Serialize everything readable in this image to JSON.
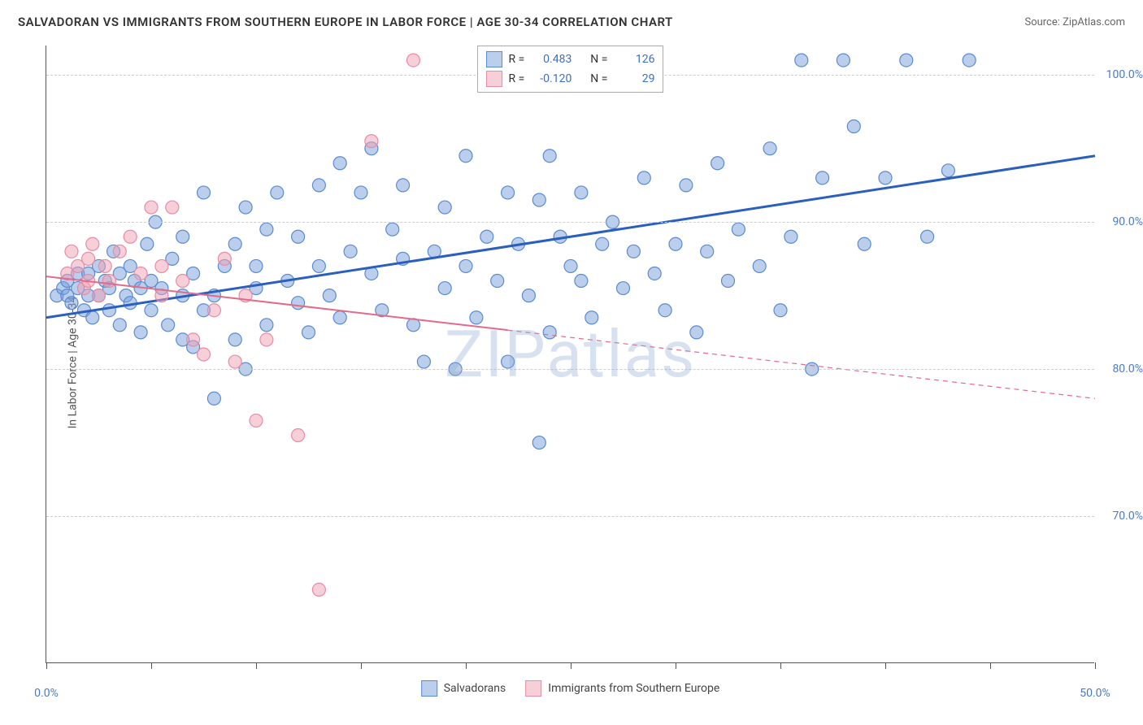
{
  "title": "SALVADORAN VS IMMIGRANTS FROM SOUTHERN EUROPE IN LABOR FORCE | AGE 30-34 CORRELATION CHART",
  "source": "Source: ZipAtlas.com",
  "ylabel": "In Labor Force | Age 30-34",
  "watermark": "ZIPatlas",
  "xlim": [
    0,
    50
  ],
  "ylim": [
    60,
    102
  ],
  "xtick_labels": {
    "0": "0.0%",
    "50": "50.0%"
  },
  "xtick_positions": [
    0,
    5,
    10,
    15,
    20,
    25,
    30,
    35,
    40,
    45,
    50
  ],
  "ytick_labels": {
    "70": "70.0%",
    "80": "80.0%",
    "90": "90.0%",
    "100": "100.0%"
  },
  "grid_color": "#cccccc",
  "series": [
    {
      "name": "Salvadorans",
      "color_fill": "rgba(120,160,220,0.5)",
      "color_stroke": "#5a8bd0",
      "line_color": "#2a5fbf",
      "line_width": 3,
      "line_dash": "none",
      "R": "0.483",
      "N": "126",
      "trend": {
        "x1": 0,
        "y1": 83.5,
        "x2": 50,
        "y2": 94.5,
        "solid_until_x": 50
      },
      "points": [
        [
          0.5,
          85
        ],
        [
          0.8,
          85.5
        ],
        [
          1,
          86
        ],
        [
          1,
          85
        ],
        [
          1.2,
          84.5
        ],
        [
          1.5,
          85.5
        ],
        [
          1.5,
          86.5
        ],
        [
          1.8,
          84
        ],
        [
          2,
          85
        ],
        [
          2,
          86.5
        ],
        [
          2.2,
          83.5
        ],
        [
          2.5,
          85
        ],
        [
          2.5,
          87
        ],
        [
          2.8,
          86
        ],
        [
          3,
          84
        ],
        [
          3,
          85.5
        ],
        [
          3.2,
          88
        ],
        [
          3.5,
          86.5
        ],
        [
          3.5,
          83
        ],
        [
          3.8,
          85
        ],
        [
          4,
          87
        ],
        [
          4,
          84.5
        ],
        [
          4.2,
          86
        ],
        [
          4.5,
          85.5
        ],
        [
          4.5,
          82.5
        ],
        [
          4.8,
          88.5
        ],
        [
          5,
          86
        ],
        [
          5,
          84
        ],
        [
          5.2,
          90
        ],
        [
          5.5,
          85.5
        ],
        [
          5.8,
          83
        ],
        [
          6,
          87.5
        ],
        [
          6.5,
          85
        ],
        [
          6.5,
          82
        ],
        [
          6.5,
          89
        ],
        [
          7,
          86.5
        ],
        [
          7,
          81.5
        ],
        [
          7.5,
          84
        ],
        [
          7.5,
          92
        ],
        [
          8,
          85
        ],
        [
          8,
          78
        ],
        [
          8.5,
          87
        ],
        [
          9,
          88.5
        ],
        [
          9,
          82
        ],
        [
          9.5,
          80
        ],
        [
          9.5,
          91
        ],
        [
          10,
          85.5
        ],
        [
          10,
          87
        ],
        [
          10.5,
          89.5
        ],
        [
          10.5,
          83
        ],
        [
          11,
          92
        ],
        [
          11.5,
          86
        ],
        [
          12,
          84.5
        ],
        [
          12,
          89
        ],
        [
          12.5,
          82.5
        ],
        [
          13,
          87
        ],
        [
          13,
          92.5
        ],
        [
          13.5,
          85
        ],
        [
          14,
          83.5
        ],
        [
          14,
          94
        ],
        [
          14.5,
          88
        ],
        [
          15,
          92
        ],
        [
          15.5,
          86.5
        ],
        [
          15.5,
          95
        ],
        [
          16,
          84
        ],
        [
          16.5,
          89.5
        ],
        [
          17,
          87.5
        ],
        [
          17,
          92.5
        ],
        [
          17.5,
          83
        ],
        [
          18,
          80.5
        ],
        [
          18.5,
          88
        ],
        [
          19,
          85.5
        ],
        [
          19,
          91
        ],
        [
          19.5,
          80
        ],
        [
          20,
          94.5
        ],
        [
          20,
          87
        ],
        [
          20.5,
          83.5
        ],
        [
          21,
          89
        ],
        [
          21.5,
          86
        ],
        [
          22,
          80.5
        ],
        [
          22,
          92
        ],
        [
          22.5,
          88.5
        ],
        [
          23,
          85
        ],
        [
          23.5,
          75
        ],
        [
          23.5,
          91.5
        ],
        [
          24,
          94.5
        ],
        [
          24,
          82.5
        ],
        [
          24.5,
          89
        ],
        [
          25,
          87
        ],
        [
          25.5,
          86
        ],
        [
          25.5,
          92
        ],
        [
          26,
          83.5
        ],
        [
          26.5,
          88.5
        ],
        [
          27,
          90
        ],
        [
          27.5,
          85.5
        ],
        [
          28,
          88
        ],
        [
          28.5,
          93
        ],
        [
          29,
          86.5
        ],
        [
          29.5,
          84
        ],
        [
          30,
          88.5
        ],
        [
          30.5,
          92.5
        ],
        [
          31,
          82.5
        ],
        [
          31.5,
          88
        ],
        [
          32,
          94
        ],
        [
          32.5,
          86
        ],
        [
          33,
          89.5
        ],
        [
          34,
          87
        ],
        [
          34.5,
          95
        ],
        [
          35,
          84
        ],
        [
          35.5,
          89
        ],
        [
          36,
          101
        ],
        [
          36.5,
          80
        ],
        [
          37,
          93
        ],
        [
          38,
          101
        ],
        [
          38.5,
          96.5
        ],
        [
          39,
          88.5
        ],
        [
          40,
          93
        ],
        [
          41,
          101
        ],
        [
          42,
          89
        ],
        [
          43,
          93.5
        ],
        [
          44,
          101
        ]
      ]
    },
    {
      "name": "Immigrants from Southern Europe",
      "color_fill": "rgba(240,160,180,0.5)",
      "color_stroke": "#e88ba5",
      "line_color": "#e26a8a",
      "line_width": 2,
      "line_dash": "dashed_after",
      "R": "-0.120",
      "N": "29",
      "trend": {
        "x1": 0,
        "y1": 86.3,
        "x2": 50,
        "y2": 78,
        "solid_until_x": 22
      },
      "points": [
        [
          1,
          86.5
        ],
        [
          1.2,
          88
        ],
        [
          1.5,
          87
        ],
        [
          1.8,
          85.5
        ],
        [
          2,
          87.5
        ],
        [
          2,
          86
        ],
        [
          2.2,
          88.5
        ],
        [
          2.5,
          85
        ],
        [
          2.8,
          87
        ],
        [
          3,
          86
        ],
        [
          3.5,
          88
        ],
        [
          4,
          89
        ],
        [
          4.5,
          86.5
        ],
        [
          5,
          91
        ],
        [
          5.5,
          87
        ],
        [
          5.5,
          85
        ],
        [
          6,
          91
        ],
        [
          6.5,
          86
        ],
        [
          7,
          82
        ],
        [
          7.5,
          81
        ],
        [
          8,
          84
        ],
        [
          8.5,
          87.5
        ],
        [
          9,
          80.5
        ],
        [
          9.5,
          85
        ],
        [
          10,
          76.5
        ],
        [
          10.5,
          82
        ],
        [
          12,
          75.5
        ],
        [
          13,
          65
        ],
        [
          15.5,
          95.5
        ],
        [
          17.5,
          101
        ]
      ]
    }
  ],
  "legend_bottom": [
    {
      "label": "Salvadorans",
      "fill": "rgba(120,160,220,0.5)",
      "stroke": "#5a8bd0"
    },
    {
      "label": "Immigrants from Southern Europe",
      "fill": "rgba(240,160,180,0.5)",
      "stroke": "#e88ba5"
    }
  ],
  "legend_top_labels": {
    "R": "R =",
    "N": "N ="
  }
}
